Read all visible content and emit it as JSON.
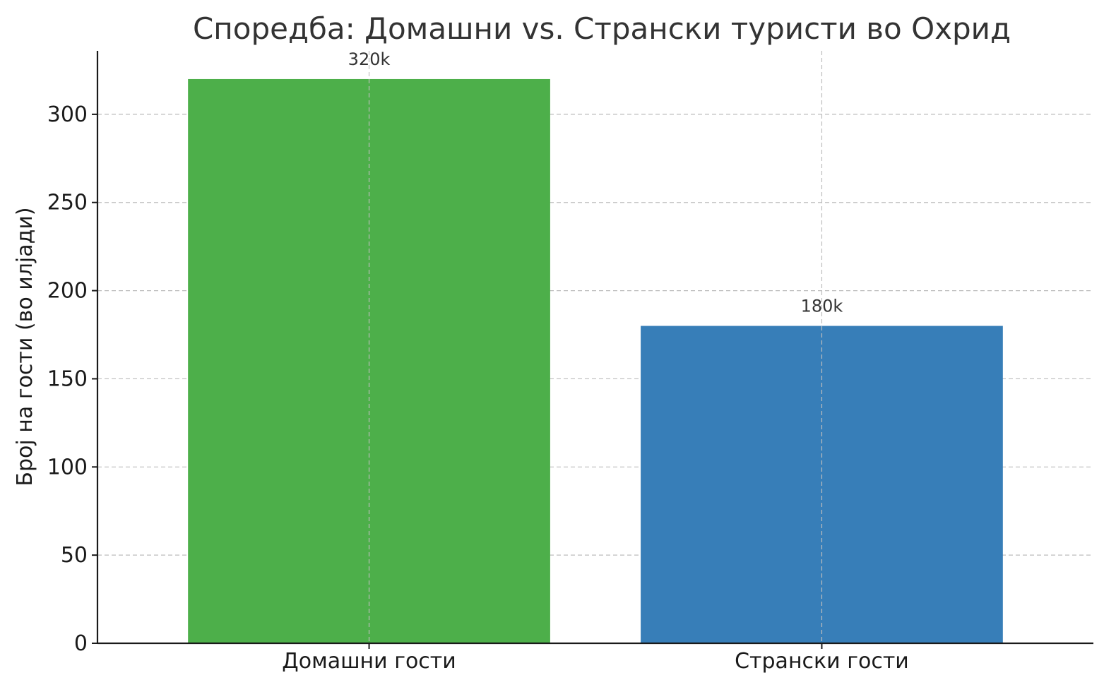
{
  "chart_data": {
    "type": "bar",
    "title": "Споредба: Домашни vs. Странски туристи во Охрид",
    "xlabel": "",
    "ylabel": "Број на гости (во илјади)",
    "categories": [
      "Домашни гости",
      "Странски гости"
    ],
    "values": [
      320,
      180
    ],
    "data_labels": [
      "320k",
      "180k"
    ],
    "colors": [
      "#4daf4a",
      "#377eb8"
    ],
    "ylim": [
      0,
      336
    ],
    "yticks": [
      0,
      50,
      100,
      150,
      200,
      250,
      300
    ],
    "grid": true
  }
}
